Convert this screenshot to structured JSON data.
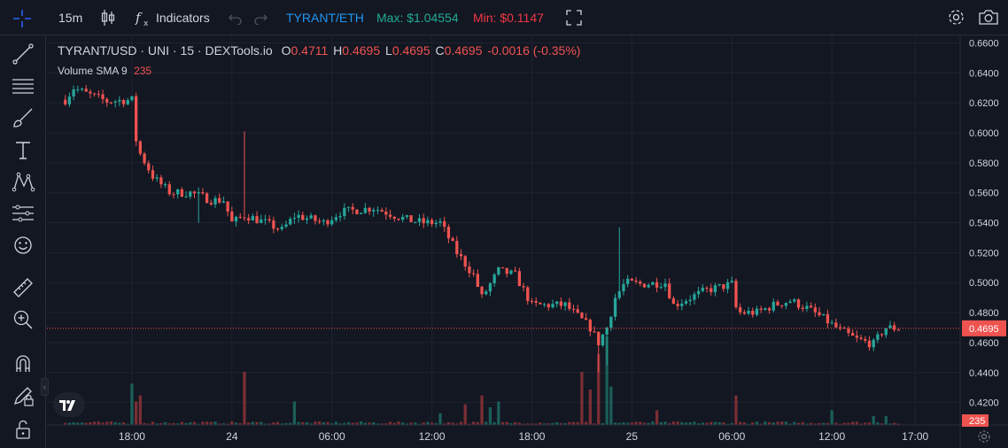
{
  "toolbar": {
    "interval": "15m",
    "indicators_label": "Indicators",
    "pair_label": "TYRANT/ETH",
    "max_label": "Max: $1.04554",
    "min_label": "Min: $0.1147",
    "icons": [
      "crosshair-icon",
      "candles-icon",
      "fx-icon",
      "undo-icon",
      "redo-icon",
      "fullscreen-icon",
      "settings-icon",
      "camera-icon"
    ]
  },
  "left_tools": [
    "trend-line-icon",
    "horizontal-lines-icon",
    "brush-icon",
    "text-icon",
    "pattern-icon",
    "forecast-icon",
    "emoji-icon",
    "ruler-icon",
    "zoom-in-icon",
    "magnet-icon",
    "lock-pencil-icon",
    "unlock-icon"
  ],
  "legend": {
    "symbol": "TYRANT/USD · UNI · 15 · DEXTools.io",
    "o_key": "O",
    "o_val": "0.4711",
    "h_key": "H",
    "h_val": "0.4695",
    "l_key": "L",
    "l_val": "0.4695",
    "c_key": "C",
    "c_val": "0.4695",
    "change": "-0.0016 (-0.35%)",
    "volume_label": "Volume SMA 9",
    "volume_val": "235"
  },
  "colors": {
    "up": "#26a69a",
    "down": "#ef5350",
    "bg": "#131722",
    "grid": "#1f2330",
    "text": "#d1d4dc",
    "pair": "#2196f3",
    "max": "#22ab94",
    "min": "#f23645"
  },
  "chart_data": {
    "type": "candlestick",
    "y_ticks": [
      "0.6600",
      "0.6400",
      "0.6200",
      "0.6000",
      "0.5800",
      "0.5600",
      "0.5400",
      "0.5200",
      "0.5000",
      "0.4800",
      "0.4600",
      "0.4400",
      "0.4200"
    ],
    "ylim": [
      0.405,
      0.665
    ],
    "x_ticks": [
      {
        "label": "18:00",
        "t": 4
      },
      {
        "label": "24",
        "t": 10
      },
      {
        "label": "06:00",
        "t": 16
      },
      {
        "label": "12:00",
        "t": 22
      },
      {
        "label": "18:00",
        "t": 28
      },
      {
        "label": "25",
        "t": 34
      },
      {
        "label": "06:00",
        "t": 40
      },
      {
        "label": "12:00",
        "t": 46
      },
      {
        "label": "17:00",
        "t": 51
      }
    ],
    "t_range": [
      -1.1,
      53.7
    ],
    "last_price": "0.4695",
    "last_volume": "235",
    "anchors": [
      [
        0,
        0.622
      ],
      [
        0.5,
        0.63
      ],
      [
        1.3,
        0.626
      ],
      [
        2.5,
        0.621
      ],
      [
        4.0,
        0.622
      ],
      [
        4.3,
        0.59
      ],
      [
        5.3,
        0.57
      ],
      [
        6.3,
        0.56
      ],
      [
        7.5,
        0.56
      ],
      [
        8.8,
        0.555
      ],
      [
        9.5,
        0.555
      ],
      [
        10.0,
        0.54
      ],
      [
        10.8,
        0.545
      ],
      [
        12.0,
        0.54
      ],
      [
        13.0,
        0.535
      ],
      [
        13.8,
        0.545
      ],
      [
        15.5,
        0.54
      ],
      [
        16.5,
        0.547
      ],
      [
        18.5,
        0.55
      ],
      [
        20.5,
        0.542
      ],
      [
        21.5,
        0.54
      ],
      [
        22.5,
        0.54
      ],
      [
        23.5,
        0.52
      ],
      [
        24.5,
        0.505
      ],
      [
        25.0,
        0.49
      ],
      [
        26.0,
        0.508
      ],
      [
        27.0,
        0.505
      ],
      [
        28.0,
        0.485
      ],
      [
        29.0,
        0.485
      ],
      [
        30.0,
        0.485
      ],
      [
        30.5,
        0.48
      ],
      [
        31.5,
        0.47
      ],
      [
        32.0,
        0.46
      ],
      [
        32.5,
        0.47
      ],
      [
        33.0,
        0.49
      ],
      [
        33.6,
        0.5
      ],
      [
        34.5,
        0.499
      ],
      [
        36.0,
        0.5
      ],
      [
        36.5,
        0.485
      ],
      [
        37.5,
        0.49
      ],
      [
        38.5,
        0.495
      ],
      [
        40.0,
        0.499
      ],
      [
        40.3,
        0.48
      ],
      [
        41.5,
        0.48
      ],
      [
        42.5,
        0.485
      ],
      [
        43.5,
        0.488
      ],
      [
        44.5,
        0.483
      ],
      [
        45.5,
        0.476
      ],
      [
        46.5,
        0.468
      ],
      [
        47.5,
        0.462
      ],
      [
        48.5,
        0.459
      ],
      [
        49.2,
        0.47
      ],
      [
        50.0,
        0.4695
      ]
    ],
    "volumes": [
      [
        4.0,
        70
      ],
      [
        4.3,
        40
      ],
      [
        4.6,
        50
      ],
      [
        10.8,
        90
      ],
      [
        13.8,
        40
      ],
      [
        22.5,
        20
      ],
      [
        24.0,
        35
      ],
      [
        25.0,
        50
      ],
      [
        25.5,
        30
      ],
      [
        26.0,
        40
      ],
      [
        31.0,
        90
      ],
      [
        31.5,
        60
      ],
      [
        32.0,
        120
      ],
      [
        32.5,
        150
      ],
      [
        32.8,
        65
      ],
      [
        35.5,
        25
      ],
      [
        40.2,
        50
      ],
      [
        46.0,
        25
      ],
      [
        48.5,
        15
      ],
      [
        49.2,
        15
      ]
    ]
  }
}
